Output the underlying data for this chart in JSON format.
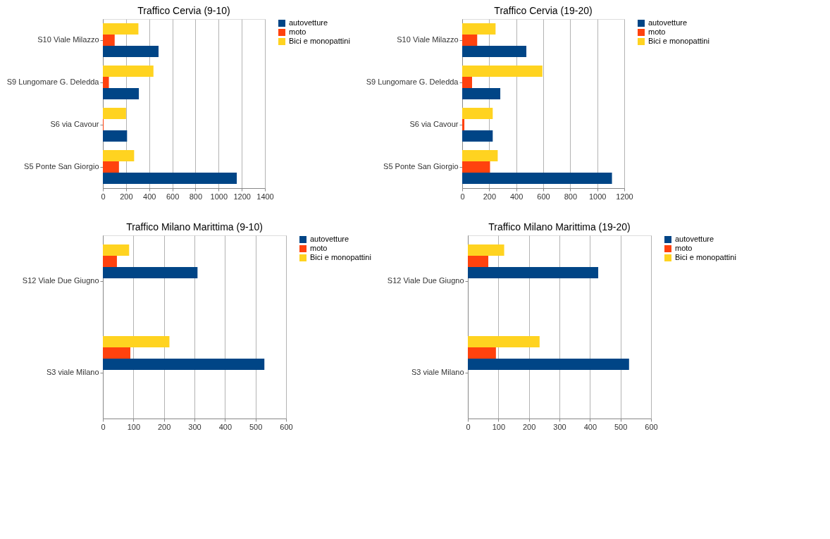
{
  "chart_data": [
    {
      "type": "bar",
      "orientation": "horizontal",
      "title": "Traffico Cervia (9-10)",
      "categories": [
        "S10 Viale Milazzo",
        "S9 Lungomare G. Deledda",
        "S6 via Cavour",
        "S5 Ponte  San Giorgio"
      ],
      "xlim": [
        0,
        1400
      ],
      "xticks": [
        0,
        200,
        400,
        600,
        800,
        1000,
        1200,
        1400
      ],
      "grid": "x",
      "legend": "right",
      "series": [
        {
          "name": "autovetture",
          "color": "#004586",
          "values": [
            481,
            311,
            209,
            1157
          ]
        },
        {
          "name": "moto",
          "color": "#ff420e",
          "values": [
            102,
            52,
            6,
            139
          ]
        },
        {
          "name": "Bici e monopattini",
          "color": "#ffd320",
          "values": [
            307,
            437,
            200,
            270
          ]
        }
      ]
    },
    {
      "type": "bar",
      "orientation": "horizontal",
      "title": "Traffico Cervia (19-20)",
      "categories": [
        "S10 Viale Milazzo",
        "S9 Lungomare G. Deledda",
        "S6 via Cavour",
        "S5 Ponte  San Giorgio"
      ],
      "xlim": [
        0,
        1200
      ],
      "xticks": [
        0,
        200,
        400,
        600,
        800,
        1000,
        1200
      ],
      "grid": "x",
      "legend": "right",
      "series": [
        {
          "name": "autovetture",
          "color": "#004586",
          "values": [
            475,
            282,
            226,
            1109
          ]
        },
        {
          "name": "moto",
          "color": "#ff420e",
          "values": [
            111,
            73,
            16,
            206
          ]
        },
        {
          "name": "Bici e monopattini",
          "color": "#ffd320",
          "values": [
            247,
            594,
            226,
            263
          ]
        }
      ]
    },
    {
      "type": "bar",
      "orientation": "horizontal",
      "title": "Traffico Milano Marittima (9-10)",
      "categories": [
        "S12 Viale Due Giugno",
        "S3 viale Milano"
      ],
      "xlim": [
        0,
        600
      ],
      "xticks": [
        0,
        100,
        200,
        300,
        400,
        500,
        600
      ],
      "grid": "x",
      "legend": "right",
      "series": [
        {
          "name": "autovetture",
          "color": "#004586",
          "values": [
            310,
            529
          ]
        },
        {
          "name": "moto",
          "color": "#ff420e",
          "values": [
            46,
            90
          ]
        },
        {
          "name": "Bici e monopattini",
          "color": "#ffd320",
          "values": [
            86,
            218
          ]
        }
      ]
    },
    {
      "type": "bar",
      "orientation": "horizontal",
      "title": "Traffico Milano Marittima (19-20)",
      "categories": [
        "S12 Viale Due Giugno",
        "S3 viale Milano"
      ],
      "xlim": [
        0,
        600
      ],
      "xticks": [
        0,
        100,
        200,
        300,
        400,
        500,
        600
      ],
      "grid": "x",
      "legend": "right",
      "series": [
        {
          "name": "autovetture",
          "color": "#004586",
          "values": [
            427,
            528
          ]
        },
        {
          "name": "moto",
          "color": "#ff420e",
          "values": [
            67,
            92
          ]
        },
        {
          "name": "Bici e monopattini",
          "color": "#ffd320",
          "values": [
            119,
            235
          ]
        }
      ]
    }
  ]
}
